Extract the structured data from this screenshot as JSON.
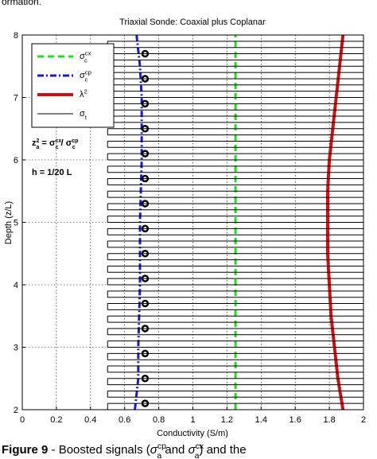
{
  "header_fragment": "ormation.",
  "chart_data": {
    "type": "line",
    "title": "Triaxial Sonde: Coaxial plus Coplanar",
    "x_label": "Conductivity (S/m)",
    "y_label": "Depth (z/L)",
    "xlim": [
      0,
      2
    ],
    "ylim": [
      2,
      8
    ],
    "xticks": [
      0,
      0.2,
      0.4,
      0.6,
      0.8,
      1,
      1.2,
      1.4,
      1.6,
      1.8,
      2
    ],
    "yticks": [
      2,
      3,
      4,
      5,
      6,
      7,
      8
    ],
    "grid": true,
    "legend": "upper left",
    "series": [
      {
        "name": {
          "base": "σ",
          "sup": "cx",
          "sub": "c"
        },
        "color": "#22dd22",
        "style": "dashed",
        "depth": [
          2,
          5,
          8
        ],
        "values": [
          1.25,
          1.25,
          1.25
        ]
      },
      {
        "name": {
          "base": "σ",
          "sup": "cp",
          "sub": "c"
        },
        "color": "#1a1ad0",
        "style": "dashdot",
        "depth": [
          2,
          2.5,
          3,
          4,
          5,
          6,
          7,
          7.5,
          8
        ],
        "values": [
          0.66,
          0.68,
          0.68,
          0.69,
          0.69,
          0.7,
          0.7,
          0.69,
          0.67
        ]
      },
      {
        "name": {
          "base": "λ",
          "sup": "2"
        },
        "color": "#d01010",
        "style": "thick",
        "depth": [
          2,
          2.5,
          3,
          3.5,
          4,
          4.5,
          5,
          5.5,
          6,
          6.5,
          7,
          7.5,
          8
        ],
        "values": [
          1.88,
          1.85,
          1.83,
          1.81,
          1.8,
          1.79,
          1.79,
          1.79,
          1.8,
          1.82,
          1.84,
          1.86,
          1.88
        ]
      },
      {
        "name": {
          "base": "σ",
          "sub": "t"
        },
        "color": "#000000",
        "style": "step",
        "depth": [
          2,
          2.1,
          2.2,
          2.3,
          2.4,
          2.5,
          2.6,
          2.7,
          2.8,
          2.9,
          3,
          3.1,
          3.2,
          3.3,
          3.4,
          3.5,
          3.6,
          3.7,
          3.8,
          3.9,
          4,
          4.1,
          4.2,
          4.3,
          4.4,
          4.5,
          4.6,
          4.7,
          4.8,
          4.9,
          5,
          5.1,
          5.2,
          5.3,
          5.4,
          5.5,
          5.6,
          5.7,
          5.8,
          5.9,
          6,
          6.1,
          6.2,
          6.3,
          6.4,
          6.5,
          6.6,
          6.7,
          6.8,
          6.9,
          7,
          7.1,
          7.2,
          7.3,
          7.4,
          7.5,
          7.6,
          7.7,
          7.8,
          7.9,
          8
        ],
        "values": [
          0.5,
          2,
          0.5,
          2,
          0.5,
          2,
          0.5,
          2,
          0.5,
          2,
          0.5,
          2,
          0.5,
          2,
          0.5,
          2,
          0.5,
          2,
          0.5,
          2,
          0.5,
          2,
          0.5,
          2,
          0.5,
          2,
          0.5,
          2,
          0.5,
          2,
          0.5,
          2,
          0.5,
          2,
          0.5,
          2,
          0.5,
          2,
          0.5,
          2,
          0.5,
          2,
          0.5,
          2,
          0.5,
          2,
          0.5,
          2,
          0.5,
          2,
          0.5,
          2,
          0.5,
          2,
          0.5,
          2,
          0.5,
          2,
          0.5,
          2,
          0.5
        ]
      }
    ],
    "markers": {
      "color": "#000000",
      "value": 0.72,
      "depth": [
        2.1,
        2.5,
        2.9,
        3.3,
        3.7,
        4.1,
        4.5,
        4.9,
        5.3,
        5.7,
        6.1,
        6.5,
        6.9,
        7.3,
        7.7
      ]
    },
    "annotations": [
      [
        {
          "base": "z",
          "sub": "a",
          "sup": "2"
        },
        {
          "text": " = "
        },
        {
          "base": "σ",
          "sub": "c",
          "sup": "cx"
        },
        {
          "text": " / "
        },
        {
          "base": "σ",
          "sub": "c",
          "sup": "cp"
        }
      ],
      [
        {
          "text": "h = 1/20 L"
        }
      ]
    ]
  },
  "caption": [
    {
      "text": "Figure 9",
      "bold": true
    },
    {
      "text": " - Boosted signals ("
    },
    {
      "base": "σ",
      "sub": "a",
      "sup": "cp",
      "italic": true
    },
    {
      "text": " and "
    },
    {
      "base": "σ",
      "sub": "a",
      "sup": "cx",
      "italic": true
    },
    {
      "text": ") and the"
    }
  ]
}
